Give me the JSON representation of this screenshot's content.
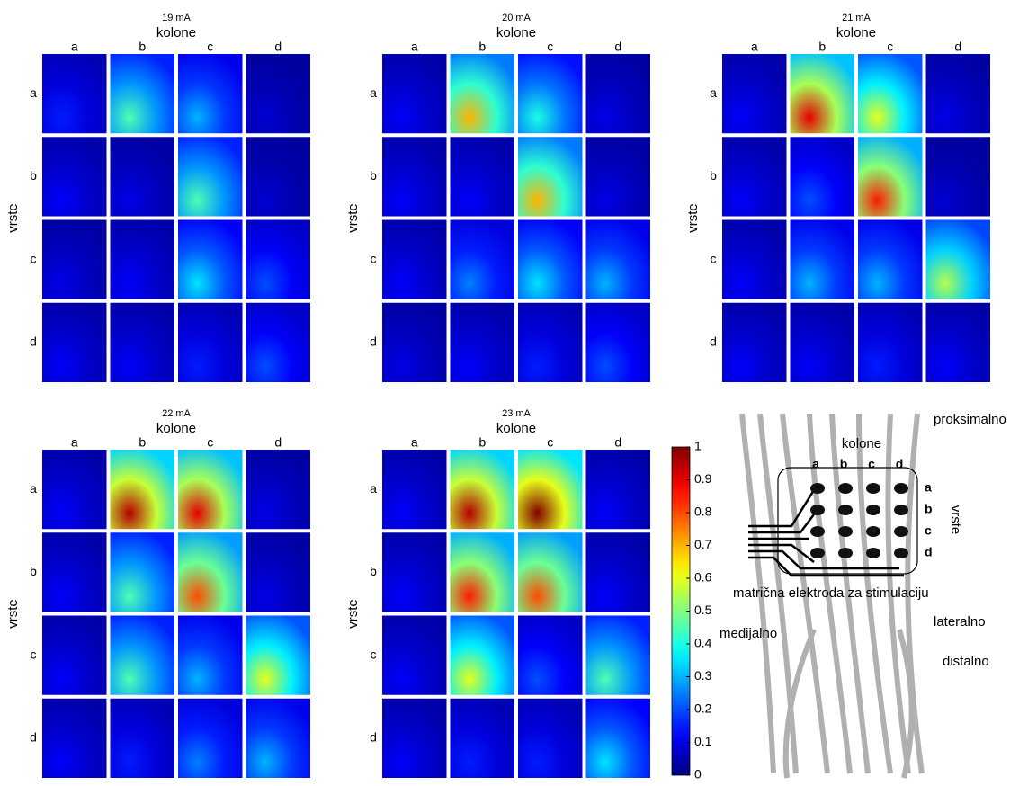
{
  "chart_data": [
    {
      "type": "heatmap",
      "title": "19 mA",
      "x_label": "kolone",
      "y_label": "vrste",
      "columns": [
        "a",
        "b",
        "c",
        "d"
      ],
      "rows": [
        "a",
        "b",
        "c",
        "d"
      ],
      "values": [
        [
          0.15,
          0.45,
          0.3,
          0.08
        ],
        [
          0.12,
          0.1,
          0.45,
          0.08
        ],
        [
          0.1,
          0.12,
          0.35,
          0.2
        ],
        [
          0.12,
          0.12,
          0.15,
          0.2
        ]
      ]
    },
    {
      "type": "heatmap",
      "title": "20 mA",
      "x_label": "kolone",
      "y_label": "vrste",
      "columns": [
        "a",
        "b",
        "c",
        "d"
      ],
      "rows": [
        "a",
        "b",
        "c",
        "d"
      ],
      "values": [
        [
          0.12,
          0.7,
          0.4,
          0.1
        ],
        [
          0.12,
          0.12,
          0.7,
          0.1
        ],
        [
          0.12,
          0.25,
          0.35,
          0.3
        ],
        [
          0.1,
          0.12,
          0.15,
          0.2
        ]
      ]
    },
    {
      "type": "heatmap",
      "title": "21 mA",
      "x_label": "kolone",
      "y_label": "vrste",
      "columns": [
        "a",
        "b",
        "c",
        "d"
      ],
      "rows": [
        "a",
        "b",
        "c",
        "d"
      ],
      "values": [
        [
          0.12,
          0.9,
          0.6,
          0.1
        ],
        [
          0.12,
          0.2,
          0.85,
          0.08
        ],
        [
          0.12,
          0.3,
          0.3,
          0.55
        ],
        [
          0.12,
          0.12,
          0.15,
          0.12
        ]
      ]
    },
    {
      "type": "heatmap",
      "title": "22 mA",
      "x_label": "kolone",
      "y_label": "vrste",
      "columns": [
        "a",
        "b",
        "c",
        "d"
      ],
      "rows": [
        "a",
        "b",
        "c",
        "d"
      ],
      "values": [
        [
          0.12,
          0.95,
          0.9,
          0.1
        ],
        [
          0.12,
          0.45,
          0.8,
          0.1
        ],
        [
          0.12,
          0.45,
          0.3,
          0.6
        ],
        [
          0.12,
          0.15,
          0.25,
          0.3
        ]
      ]
    },
    {
      "type": "heatmap",
      "title": "23 mA",
      "x_label": "kolone",
      "y_label": "vrste",
      "columns": [
        "a",
        "b",
        "c",
        "d"
      ],
      "rows": [
        "a",
        "b",
        "c",
        "d"
      ],
      "values": [
        [
          0.12,
          0.95,
          1.0,
          0.12
        ],
        [
          0.12,
          0.85,
          0.8,
          0.12
        ],
        [
          0.12,
          0.6,
          0.2,
          0.45
        ],
        [
          0.12,
          0.15,
          0.15,
          0.35
        ]
      ]
    }
  ],
  "colorbar": {
    "colormap": "jet",
    "ylim": [
      0,
      1
    ],
    "yticks": [
      0,
      0.1,
      0.2,
      0.3,
      0.4,
      0.5,
      0.6,
      0.7,
      0.8,
      0.9,
      1
    ]
  },
  "diagram": {
    "proximal": "proksimalno",
    "columns_title": "kolone",
    "columns": [
      "a",
      "b",
      "c",
      "d"
    ],
    "rows": [
      "a",
      "b",
      "c",
      "d"
    ],
    "rows_title": "vrste",
    "caption": "matrična elektroda za stimulaciju",
    "medial": "medijalno",
    "lateral": "lateralno",
    "distal": "distalno"
  }
}
